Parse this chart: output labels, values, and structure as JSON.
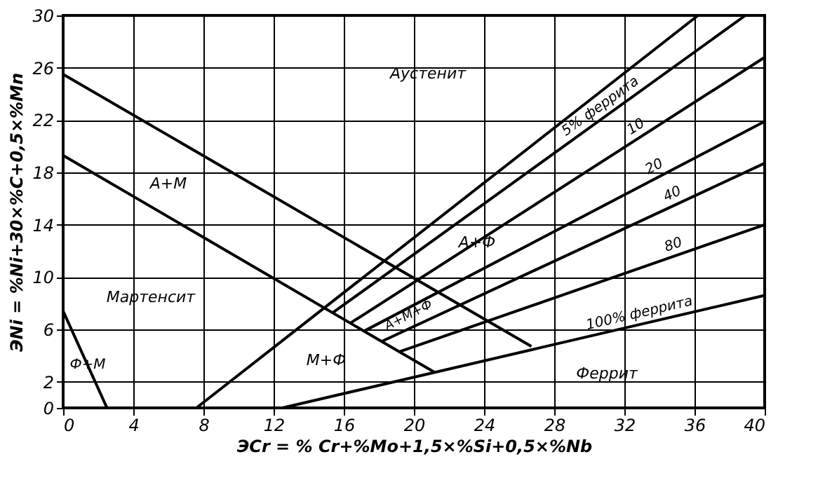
{
  "chart_data": {
    "type": "line",
    "xlabel": "ЭCr = % Cr+%Mo+1,5×%Si+0,5×%Nb",
    "ylabel": "ЭNi = %Ni+30×%C+0,5×%Mn",
    "xlim": [
      0,
      40
    ],
    "ylim": [
      0,
      30
    ],
    "xticks": [
      0,
      4,
      8,
      12,
      16,
      20,
      24,
      28,
      32,
      36,
      40
    ],
    "yticks": [
      0,
      2,
      6,
      10,
      14,
      18,
      22,
      26,
      30
    ],
    "grid": true,
    "marker": "none",
    "line_style": "solid",
    "series": [
      {
        "color": "#000000",
        "x": [
          0,
          26.7
        ],
        "values": [
          25.5,
          4.7
        ]
      },
      {
        "color": "#000000",
        "x": [
          0,
          21.2
        ],
        "values": [
          19.3,
          2.7
        ]
      },
      {
        "color": "#000000",
        "x": [
          0,
          2.5
        ],
        "values": [
          7.4,
          0
        ]
      },
      {
        "color": "#000000",
        "x": [
          7.6,
          36.2
        ],
        "values": [
          0,
          30
        ]
      },
      {
        "color": "#000000",
        "x": [
          15.4,
          38.9
        ],
        "values": [
          7.3,
          30
        ]
      },
      {
        "color": "#000000",
        "x": [
          16.4,
          40
        ],
        "values": [
          6.5,
          26.8
        ]
      },
      {
        "color": "#000000",
        "x": [
          17.2,
          40
        ],
        "values": [
          5.9,
          21.9
        ]
      },
      {
        "color": "#000000",
        "x": [
          18.2,
          40
        ],
        "values": [
          5.1,
          18.7
        ]
      },
      {
        "color": "#000000",
        "x": [
          19.2,
          40
        ],
        "values": [
          4.3,
          14
        ]
      },
      {
        "color": "#000000",
        "x": [
          12.5,
          40
        ],
        "values": [
          0,
          8.6
        ]
      }
    ],
    "annotations": [
      "Аустенит",
      "A+M",
      "Мартенсит",
      "M+Ф",
      "Ф+M",
      "A+Ф",
      "A+M+Ф",
      "Феррит",
      {
        "text": "5% феррита",
        "x": 31,
        "y": 22.37
      },
      {
        "text": "10",
        "x": 33,
        "y": 20.78
      },
      {
        "text": "20",
        "x": 34,
        "y": 17.69
      },
      {
        "text": "40",
        "x": 35,
        "y": 15.58
      },
      {
        "text": "80",
        "x": 35,
        "y": 11.67
      },
      {
        "text": "100% феррита",
        "x": 33,
        "y": 6.41
      }
    ]
  }
}
